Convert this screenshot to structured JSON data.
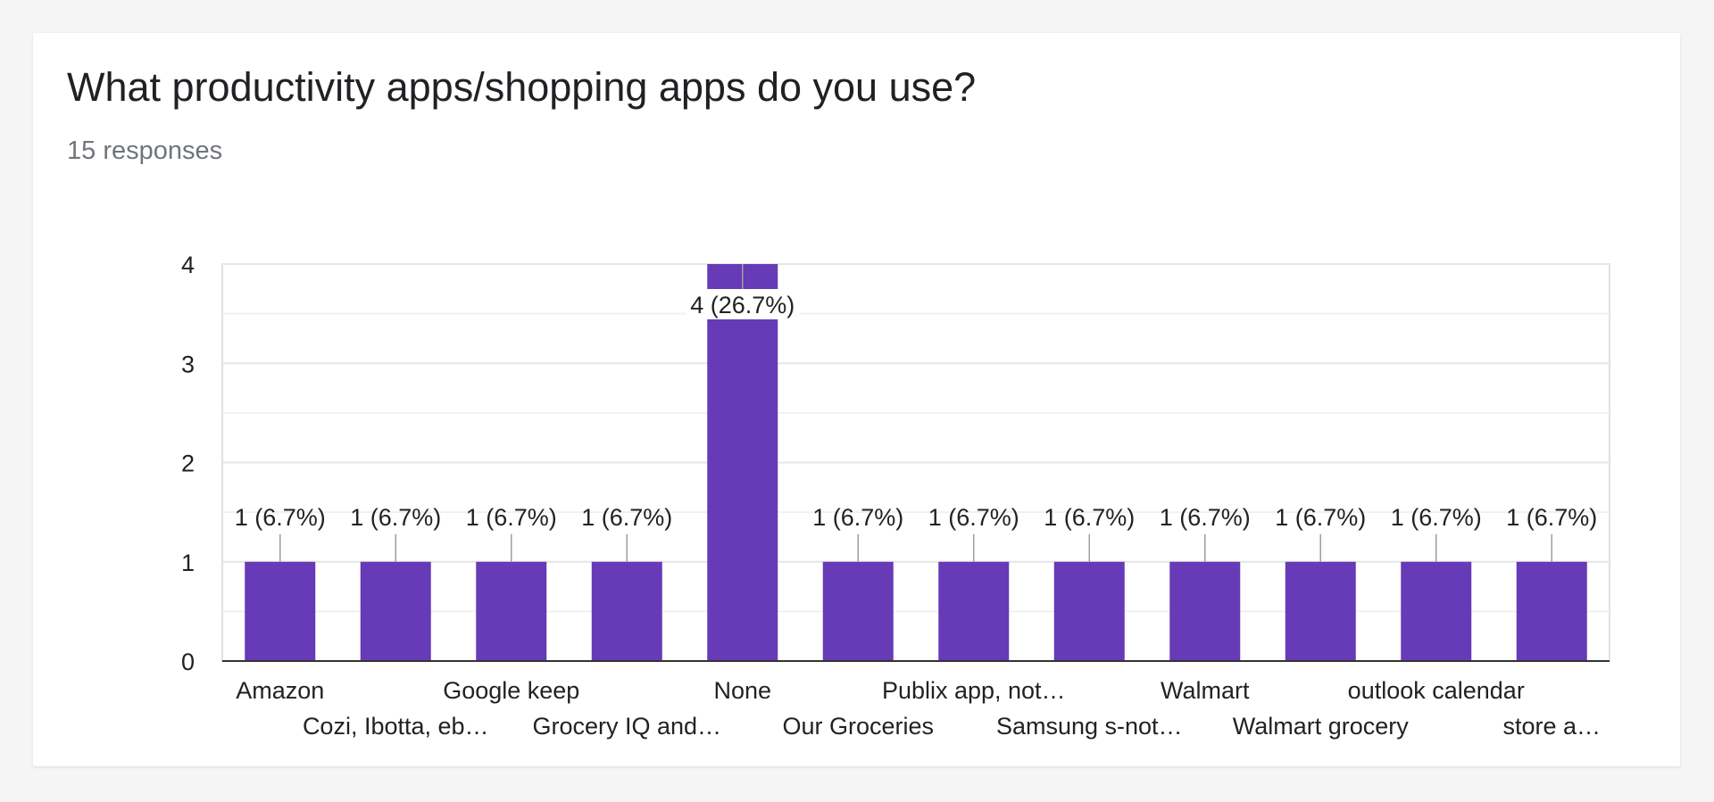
{
  "header": {
    "title": "What productivity apps/shopping apps do you use?",
    "responses": "15 responses"
  },
  "colors": {
    "bar": "#673ab7",
    "grid": "#e0e0e0",
    "axis": "#333333",
    "label": "#222222"
  },
  "chart_data": {
    "type": "bar",
    "title": "What productivity apps/shopping apps do you use?",
    "categories": [
      "Amazon",
      "Cozi, Ibotta, eb…",
      "Google keep",
      "Grocery IQ and…",
      "None",
      "Our Groceries",
      "Publix app, not…",
      "Samsung s-not…",
      "Walmart",
      "Walmart grocery",
      "outlook calendar",
      "store a…"
    ],
    "values": [
      1,
      1,
      1,
      1,
      4,
      1,
      1,
      1,
      1,
      1,
      1,
      1
    ],
    "data_labels": [
      "1 (6.7%)",
      "1 (6.7%)",
      "1 (6.7%)",
      "1 (6.7%)",
      "4 (26.7%)",
      "1 (6.7%)",
      "1 (6.7%)",
      "1 (6.7%)",
      "1 (6.7%)",
      "1 (6.7%)",
      "1 (6.7%)",
      "1 (6.7%)"
    ],
    "y_ticks": [
      0,
      1,
      2,
      3,
      4
    ],
    "ylim": [
      0,
      4
    ],
    "xlabel": "",
    "ylabel": "",
    "grid": true
  }
}
